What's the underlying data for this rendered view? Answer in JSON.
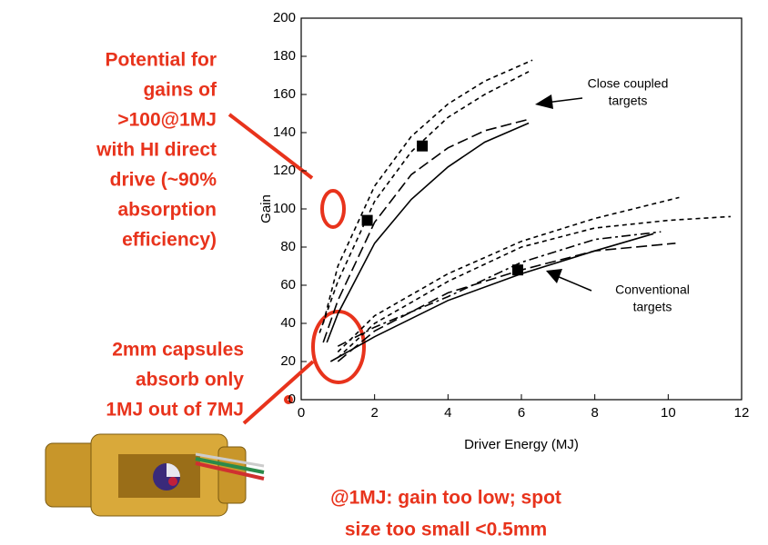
{
  "chart_data": {
    "type": "line",
    "x_label": "Driver Energy (MJ)",
    "y_label": "Gain",
    "xlim": [
      0,
      12
    ],
    "ylim": [
      0,
      200
    ],
    "xticks": [
      0,
      2,
      4,
      6,
      8,
      10,
      12
    ],
    "yticks": [
      0,
      20,
      40,
      60,
      80,
      100,
      120,
      140,
      160,
      180,
      200
    ],
    "series": [
      {
        "color": "#000000",
        "dash": "5,4",
        "x": [
          0.6,
          1,
          2,
          3,
          4,
          5,
          6.3
        ],
        "values": [
          40,
          70,
          112,
          138,
          155,
          167,
          178
        ]
      },
      {
        "color": "#000000",
        "dash": "5,4",
        "x": [
          0.5,
          1,
          2,
          3,
          4,
          5,
          6.2
        ],
        "values": [
          35,
          62,
          104,
          130,
          148,
          160,
          172
        ]
      },
      {
        "color": "#000000",
        "dash": "12,5",
        "x": [
          0.6,
          1,
          2,
          3,
          4,
          5,
          6.2
        ],
        "values": [
          30,
          52,
          93,
          118,
          132,
          141,
          147
        ]
      },
      {
        "color": "#000000",
        "dash": "",
        "x": [
          0.7,
          1,
          2,
          3,
          4,
          5,
          6.2
        ],
        "values": [
          30,
          45,
          82,
          105,
          122,
          135,
          145
        ]
      },
      {
        "color": "#000000",
        "dash": "5,4",
        "x": [
          1,
          2,
          4,
          6,
          8,
          10.3
        ],
        "values": [
          25,
          44,
          66,
          83,
          95,
          106
        ]
      },
      {
        "color": "#000000",
        "dash": "5,4",
        "x": [
          1,
          2,
          4,
          6,
          8,
          10,
          11.7
        ],
        "values": [
          22,
          40,
          62,
          80,
          90,
          94,
          96
        ]
      },
      {
        "color": "#000000",
        "dash": "12,5",
        "x": [
          1,
          2,
          4,
          6,
          8,
          10.2
        ],
        "values": [
          20,
          36,
          56,
          68,
          78,
          82
        ]
      },
      {
        "color": "#000000",
        "dash": "",
        "x": [
          0.8,
          2,
          4,
          6,
          8,
          9.6
        ],
        "values": [
          20,
          33,
          52,
          66,
          78,
          87
        ]
      },
      {
        "color": "#000000",
        "dash": "10,4,3,4",
        "x": [
          1,
          2,
          4,
          6,
          8,
          9.8
        ],
        "values": [
          28,
          38,
          54,
          72,
          84,
          88
        ]
      }
    ],
    "points": {
      "color": "#000000",
      "x": [
        1.8,
        3.3,
        5.9
      ],
      "values": [
        94,
        133,
        68
      ]
    },
    "annotations": [
      {
        "lines": [
          "Close coupled",
          "targets"
        ]
      },
      {
        "lines": [
          "Conventional",
          "targets"
        ]
      }
    ],
    "callout_color": "#e8331c",
    "callouts": [
      {
        "lines": [
          "Potential for",
          "gains of",
          ">100@1MJ",
          "with HI direct",
          "drive (~90%",
          "absorption",
          "efficiency)"
        ]
      },
      {
        "lines": [
          "2mm capsules",
          "absorb only",
          "1MJ out of 7MJ"
        ]
      },
      {
        "lines": [
          "@1MJ: gain too low; spot",
          "size too small <0.5mm"
        ]
      }
    ]
  }
}
